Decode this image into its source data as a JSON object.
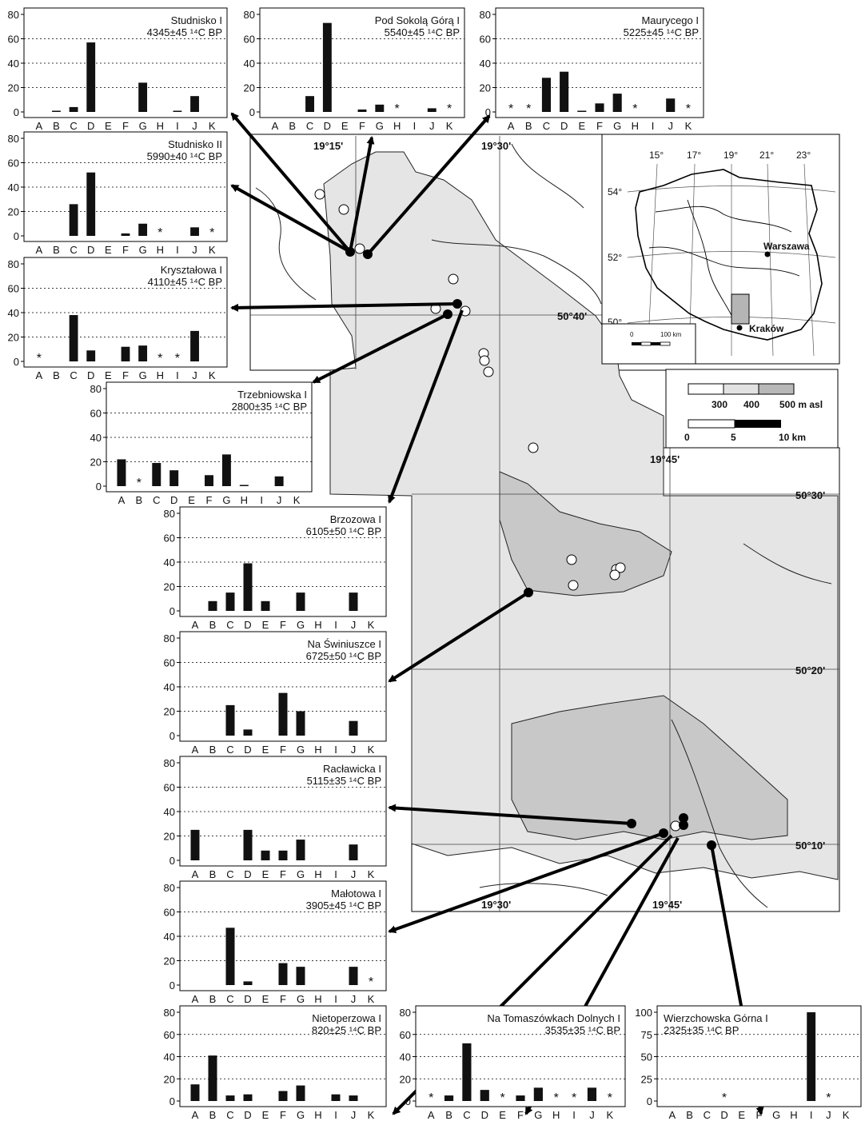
{
  "map": {
    "coord_labels": {
      "lon_19_15": "19°15'",
      "lon_19_30_top": "19°30'",
      "lon_19_45_mid": "19°45'",
      "lon_19_30_bot": "19°30'",
      "lon_19_45_bot": "19°45'",
      "lat_50_40": "50°40'",
      "lat_50_30": "50°30'",
      "lat_50_20": "50°20'",
      "lat_50_10": "50°10'"
    },
    "legend": {
      "elev_labels": [
        "300",
        "400",
        "500 m asl"
      ],
      "scale_labels": [
        "0",
        "5",
        "10 km"
      ]
    },
    "inset": {
      "lon_labels": [
        "15°",
        "17°",
        "19°",
        "21°",
        "23°"
      ],
      "lat_labels": [
        "54°",
        "52°",
        "50°"
      ],
      "city_warszawa": "Warszawa",
      "city_krakow": "Kraków",
      "scale_label_0": "0",
      "scale_label_100": "100 km"
    }
  },
  "chart_data": [
    {
      "type": "bar",
      "title": "Studnisko I",
      "date": "4345±45 ¹⁴C BP",
      "categories": [
        "A",
        "B",
        "C",
        "D",
        "E",
        "F",
        "G",
        "H",
        "I",
        "J",
        "K"
      ],
      "values": [
        0,
        1,
        4,
        57,
        0,
        0,
        24,
        0,
        1,
        13,
        0
      ],
      "stars": [],
      "ylim": [
        0,
        80
      ],
      "yticks": [
        0,
        20,
        40,
        60,
        80
      ]
    },
    {
      "type": "bar",
      "title": "Pod Sokolą Górą I",
      "date": "5540±45 ¹⁴C BP",
      "categories": [
        "A",
        "B",
        "C",
        "D",
        "E",
        "F",
        "G",
        "H",
        "I",
        "J",
        "K"
      ],
      "values": [
        0,
        0,
        13,
        73,
        0,
        2,
        6,
        0,
        0,
        3,
        0
      ],
      "stars": [
        "H",
        "K"
      ],
      "ylim": [
        0,
        80
      ],
      "yticks": [
        0,
        20,
        40,
        60,
        80
      ]
    },
    {
      "type": "bar",
      "title": "Maurycego I",
      "date": "5225±45 ¹⁴C BP",
      "categories": [
        "A",
        "B",
        "C",
        "D",
        "E",
        "F",
        "G",
        "H",
        "I",
        "J",
        "K"
      ],
      "values": [
        0,
        0,
        28,
        33,
        1,
        7,
        15,
        0,
        0,
        11,
        0
      ],
      "stars": [
        "A",
        "B",
        "H",
        "K"
      ],
      "ylim": [
        0,
        80
      ],
      "yticks": [
        0,
        20,
        40,
        60,
        80
      ]
    },
    {
      "type": "bar",
      "title": "Studnisko II",
      "date": "5990±40 ¹⁴C BP",
      "categories": [
        "A",
        "B",
        "C",
        "D",
        "E",
        "F",
        "G",
        "H",
        "I",
        "J",
        "K"
      ],
      "values": [
        0,
        0,
        26,
        52,
        0,
        2,
        10,
        0,
        0,
        7,
        0
      ],
      "stars": [
        "H",
        "K"
      ],
      "ylim": [
        0,
        80
      ],
      "yticks": [
        0,
        20,
        40,
        60,
        80
      ]
    },
    {
      "type": "bar",
      "title": "Kryształowa I",
      "date": "4110±45 ¹⁴C BP",
      "categories": [
        "A",
        "B",
        "C",
        "D",
        "E",
        "F",
        "G",
        "H",
        "I",
        "J",
        "K"
      ],
      "values": [
        0,
        0,
        38,
        9,
        0,
        12,
        13,
        0,
        0,
        25,
        0
      ],
      "stars": [
        "A",
        "H",
        "I"
      ],
      "ylim": [
        0,
        80
      ],
      "yticks": [
        0,
        20,
        40,
        60,
        80
      ]
    },
    {
      "type": "bar",
      "title": "Trzebniowska I",
      "date": "2800±35 ¹⁴C BP",
      "categories": [
        "A",
        "B",
        "C",
        "D",
        "E",
        "F",
        "G",
        "H",
        "I",
        "J",
        "K"
      ],
      "values": [
        22,
        0,
        19,
        13,
        0,
        9,
        26,
        1,
        0,
        8,
        0
      ],
      "stars": [
        "B"
      ],
      "ylim": [
        0,
        80
      ],
      "yticks": [
        0,
        20,
        40,
        60,
        80
      ]
    },
    {
      "type": "bar",
      "title": "Brzozowa I",
      "date": "6105±50 ¹⁴C BP",
      "categories": [
        "A",
        "B",
        "C",
        "D",
        "E",
        "F",
        "G",
        "H",
        "I",
        "J",
        "K"
      ],
      "values": [
        0,
        8,
        15,
        39,
        8,
        0,
        15,
        0,
        0,
        15,
        0
      ],
      "stars": [],
      "ylim": [
        0,
        80
      ],
      "yticks": [
        0,
        20,
        40,
        60,
        80
      ]
    },
    {
      "type": "bar",
      "title": "Na Świniuszce I",
      "date": "6725±50 ¹⁴C BP",
      "categories": [
        "A",
        "B",
        "C",
        "D",
        "E",
        "F",
        "G",
        "H",
        "I",
        "J",
        "K"
      ],
      "values": [
        0,
        0,
        25,
        5,
        0,
        35,
        20,
        0,
        0,
        12,
        0
      ],
      "stars": [],
      "ylim": [
        0,
        80
      ],
      "yticks": [
        0,
        20,
        40,
        60,
        80
      ]
    },
    {
      "type": "bar",
      "title": "Racławicka I",
      "date": "5115±35 ¹⁴C BP",
      "categories": [
        "A",
        "B",
        "C",
        "D",
        "E",
        "F",
        "G",
        "H",
        "I",
        "J",
        "K"
      ],
      "values": [
        25,
        0,
        0,
        25,
        8,
        8,
        17,
        0,
        0,
        13,
        0
      ],
      "stars": [],
      "ylim": [
        0,
        80
      ],
      "yticks": [
        0,
        20,
        40,
        60,
        80
      ]
    },
    {
      "type": "bar",
      "title": "Małotowa I",
      "date": "3905±45 ¹⁴C BP",
      "categories": [
        "A",
        "B",
        "C",
        "D",
        "E",
        "F",
        "G",
        "H",
        "I",
        "J",
        "K"
      ],
      "values": [
        0,
        0,
        47,
        3,
        0,
        18,
        15,
        0,
        0,
        15,
        0
      ],
      "stars": [
        "K"
      ],
      "ylim": [
        0,
        80
      ],
      "yticks": [
        0,
        20,
        40,
        60,
        80
      ]
    },
    {
      "type": "bar",
      "title": "Nietoperzowa I",
      "date": "820±25 ¹⁴C BP",
      "categories": [
        "A",
        "B",
        "C",
        "D",
        "E",
        "F",
        "G",
        "H",
        "I",
        "J",
        "K"
      ],
      "values": [
        15,
        41,
        5,
        6,
        0,
        9,
        14,
        0,
        6,
        5,
        0
      ],
      "stars": [],
      "ylim": [
        0,
        80
      ],
      "yticks": [
        0,
        20,
        40,
        60,
        80
      ]
    },
    {
      "type": "bar",
      "title": "Na Tomaszówkach Dolnych I",
      "date": "3535±35 ¹⁴C BP",
      "categories": [
        "A",
        "B",
        "C",
        "D",
        "E",
        "F",
        "G",
        "H",
        "I",
        "J",
        "K"
      ],
      "values": [
        0,
        5,
        52,
        10,
        0,
        5,
        12,
        0,
        0,
        12,
        0
      ],
      "stars": [
        "A",
        "E",
        "H",
        "I",
        "K"
      ],
      "ylim": [
        0,
        80
      ],
      "yticks": [
        0,
        20,
        40,
        60,
        80
      ]
    },
    {
      "type": "bar",
      "title": "Wierzchowska Górna I",
      "date": "2325±35 ¹⁴C BP",
      "categories": [
        "A",
        "B",
        "C",
        "D",
        "E",
        "F",
        "G",
        "H",
        "I",
        "J",
        "K"
      ],
      "values": [
        0,
        0,
        0,
        0,
        0,
        0,
        0,
        0,
        100,
        0,
        0
      ],
      "stars": [
        "D",
        "J"
      ],
      "ylim": [
        0,
        100
      ],
      "yticks": [
        0,
        25,
        50,
        75,
        100
      ]
    }
  ]
}
